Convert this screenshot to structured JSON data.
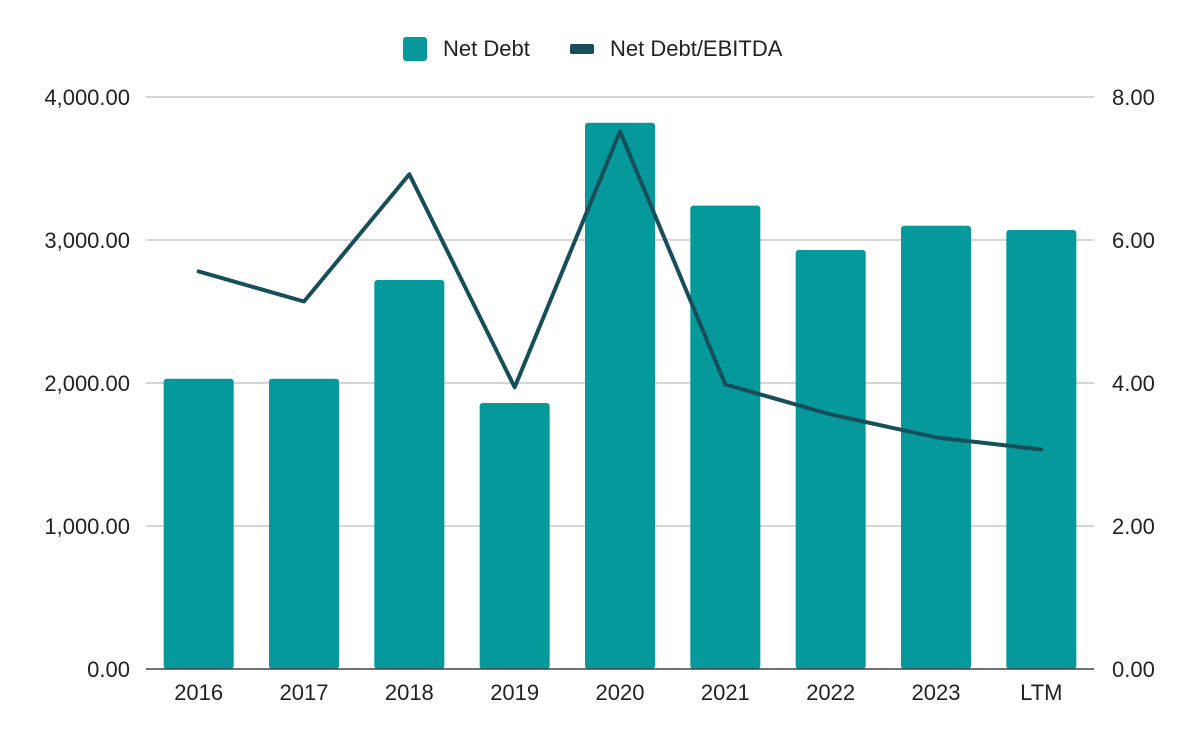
{
  "chart_data": {
    "type": "bar",
    "categories": [
      "2016",
      "2017",
      "2018",
      "2019",
      "2020",
      "2021",
      "2022",
      "2023",
      "LTM"
    ],
    "series": [
      {
        "name": "Net Debt",
        "type": "bar",
        "axis": "left",
        "color": "#05999c",
        "values": [
          2030,
          2030,
          2720,
          1860,
          3820,
          3240,
          2930,
          3100,
          3070
        ]
      },
      {
        "name": "Net Debt/EBITDA",
        "type": "line",
        "axis": "right",
        "color": "#164f5a",
        "values": [
          5.56,
          5.14,
          6.92,
          3.94,
          7.52,
          3.98,
          3.56,
          3.24,
          3.07
        ]
      }
    ],
    "y_left": {
      "min": 0,
      "max": 4000,
      "ticks": [
        "0.00",
        "1,000.00",
        "2,000.00",
        "3,000.00",
        "4,000.00"
      ]
    },
    "y_right": {
      "min": 0,
      "max": 8,
      "ticks": [
        "0.00",
        "2.00",
        "4.00",
        "6.00",
        "8.00"
      ]
    },
    "legend": {
      "position": "top-center",
      "items": [
        "Net Debt",
        "Net Debt/EBITDA"
      ]
    },
    "grid": true,
    "title": "",
    "xlabel": "",
    "ylabel": ""
  }
}
